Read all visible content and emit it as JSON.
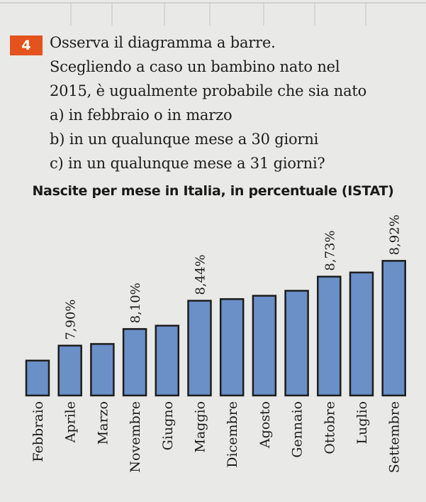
{
  "exercise": {
    "number": "4",
    "lines": [
      "Osserva il diagramma a barre.",
      "Scegliendo a caso un bambino nato nel",
      "2015, è ugualmente probabile che sia nato",
      "a) in febbraio o in marzo",
      "b) in un qualunque mese a 30 giorni",
      "c) in un qualunque mese a 31 giorni?"
    ]
  },
  "chart_data": {
    "type": "bar",
    "title": "Nascite per mese in Italia, in percentuale (ISTAT)",
    "xlabel": "",
    "ylabel": "",
    "ylim": [
      7.3,
      9.0
    ],
    "categories": [
      "Febbraio",
      "Aprile",
      "Marzo",
      "Novembre",
      "Giugno",
      "Maggio",
      "Dicembre",
      "Agosto",
      "Gennaio",
      "Ottobre",
      "Luglio",
      "Settembre"
    ],
    "values": [
      7.72,
      7.9,
      7.92,
      8.1,
      8.14,
      8.44,
      8.46,
      8.5,
      8.56,
      8.73,
      8.78,
      8.92
    ],
    "data_labels": [
      "",
      "7,90%",
      "",
      "8,10%",
      "",
      "8,44%",
      "",
      "",
      "",
      "8,73%",
      "",
      "8,92%"
    ],
    "bar_color": "#6b8fc7",
    "bar_edge_color": "#1d1d1d",
    "grid": false,
    "legend": "none"
  },
  "colors": {
    "badge": "#e4531d",
    "background": "#e9e9e7"
  }
}
